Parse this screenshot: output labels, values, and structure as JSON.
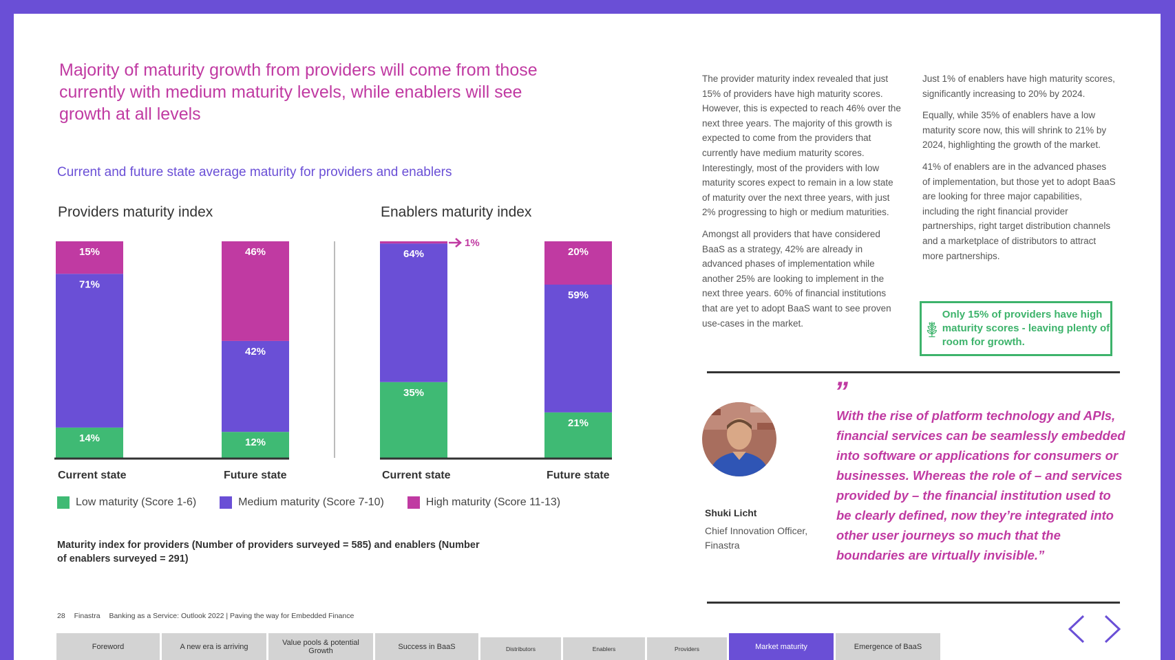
{
  "headline": "Majority of maturity growth from providers will come from those currently with medium maturity levels, while enablers will see growth at all levels",
  "subtitle": "Current and future state average maturity for providers and enablers",
  "chart_data": [
    {
      "type": "bar",
      "stacked": true,
      "title": "Providers maturity index",
      "categories": [
        "Current state",
        "Future state"
      ],
      "series": [
        {
          "name": "Low maturity (Score 1-6)",
          "values": [
            14,
            12
          ],
          "labels": [
            "14%",
            "12%"
          ]
        },
        {
          "name": "Medium maturity (Score 7-10)",
          "values": [
            71,
            42
          ],
          "labels": [
            "71%",
            "42%"
          ]
        },
        {
          "name": "High maturity (Score 11-13)",
          "values": [
            15,
            46
          ],
          "labels": [
            "15%",
            "46%"
          ]
        }
      ],
      "ylim": [
        0,
        100
      ],
      "grid": false
    },
    {
      "type": "bar",
      "stacked": true,
      "title": "Enablers maturity index",
      "categories": [
        "Current state",
        "Future state"
      ],
      "series": [
        {
          "name": "Low maturity (Score 1-6)",
          "values": [
            35,
            21
          ],
          "labels": [
            "35%",
            "21%"
          ]
        },
        {
          "name": "Medium maturity (Score 7-10)",
          "values": [
            64,
            59
          ],
          "labels": [
            "64%",
            "59%"
          ]
        },
        {
          "name": "High maturity (Score 11-13)",
          "values": [
            1,
            20
          ],
          "labels": [
            "1%",
            "20%"
          ]
        }
      ],
      "ylim": [
        0,
        100
      ],
      "grid": false,
      "annotation": "1%"
    }
  ],
  "legend": {
    "items": [
      {
        "label": "Low maturity (Score 1-6)",
        "color": "#3fba74"
      },
      {
        "label": "Medium maturity (Score 7-10)",
        "color": "#6a4fd6"
      },
      {
        "label": "High maturity (Score 11-13)",
        "color": "#c03aa2"
      }
    ]
  },
  "footnote": "Maturity index for providers (Number of providers surveyed = 585) and enablers (Number of enablers surveyed = 291)",
  "body": {
    "col1": [
      "The provider maturity index revealed that just 15% of providers have high maturity scores. However, this is expected to reach 46% over the next three years. The majority of this growth is expected to come from the providers that currently have medium maturity scores. Interestingly, most of the providers with low maturity scores expect to remain in a low state of maturity over the next three years, with just 2% progressing to high or medium maturities.",
      "Amongst all providers that have considered BaaS as a strategy, 42% are already in advanced phases of implementation while another 25% are looking to implement in the next three years. 60% of financial institutions that are yet to adopt BaaS want to see proven use-cases in the market."
    ],
    "col2": [
      "Just 1% of enablers have high maturity scores, significantly increasing to 20% by 2024.",
      "Equally, while 35% of enablers have a low maturity score now, this will shrink to 21% by 2024, highlighting the growth of the market.",
      "41% of enablers are in the advanced phases of implementation, but those yet to adopt BaaS are looking for three major capabilities, including the right financial provider partnerships, right target distribution channels and a marketplace of distributors to attract more partnerships."
    ]
  },
  "callout": {
    "text": "Only 15% of providers have high maturity scores - leaving plenty of room for growth.",
    "icon": "sprout-icon"
  },
  "quote": {
    "mark_open": "”",
    "text": "With the rise of platform technology and APIs, financial services can be seamlessly embedded into software or applications for consumers or businesses. Whereas the role of – and services provided by – the financial institution used to be clearly defined, now they’re integrated into other user journeys so much that the boundaries are virtually invisible.”",
    "name": "Shuki Licht",
    "role": "Chief Innovation Officer, Finastra"
  },
  "footer": {
    "page_number": "28",
    "brand": "Finastra",
    "publication": "Banking as a Service: Outlook 2022 | Paving the way for Embedded Finance"
  },
  "tabs": [
    {
      "label": "Foreword"
    },
    {
      "label": "A new era is arriving"
    },
    {
      "label": "Value pools & potential Growth"
    },
    {
      "label": "Success in BaaS"
    },
    {
      "label": "Distributors"
    },
    {
      "label": "Enablers"
    },
    {
      "label": "Providers"
    },
    {
      "label": "Market maturity"
    },
    {
      "label": "Emergence of BaaS"
    }
  ],
  "colors": {
    "frame": "#6a4fd6",
    "magenta": "#c03aa2",
    "green": "#3fba74"
  }
}
